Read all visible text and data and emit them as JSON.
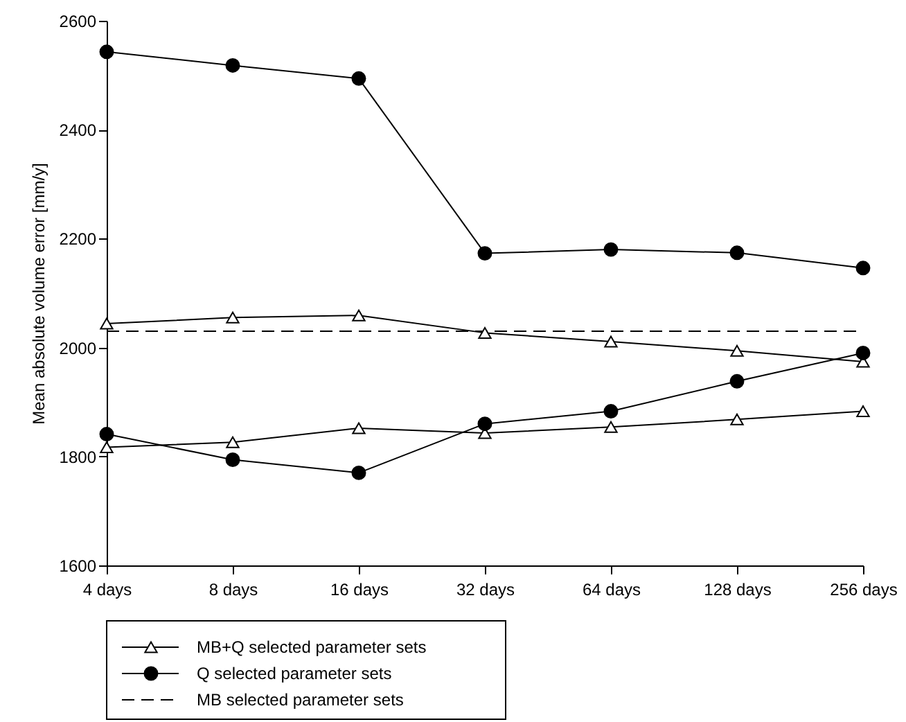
{
  "chart_data": {
    "type": "line",
    "ylabel": "Mean absolute volume error [mm/y]",
    "categories": [
      "4 days",
      "8 days",
      "16 days",
      "32 days",
      "64 days",
      "128 days",
      "256 days"
    ],
    "series": [
      {
        "name": "MB+Q selected parameter sets",
        "color": "#000000",
        "marker": "triangle",
        "values": [
          2044,
          2055,
          2059,
          2027,
          2011,
          1994,
          1974
        ]
      },
      {
        "color": "#000000",
        "marker": "triangle",
        "values": [
          1817,
          1826,
          1852,
          1843,
          1854,
          1868,
          1883
        ]
      },
      {
        "name": "Q selected parameter sets",
        "color": "#000000",
        "marker": "circle",
        "values": [
          2543,
          2518,
          2494,
          2173,
          2180,
          2174,
          2146
        ]
      },
      {
        "color": "#000000",
        "marker": "circle",
        "values": [
          1841,
          1794,
          1770,
          1860,
          1883,
          1938,
          1990
        ]
      },
      {
        "name": "MB selected parameter sets",
        "color": "#000000",
        "marker": "none",
        "line_style": "dashed",
        "values": [
          2030,
          2030,
          2030,
          2030,
          2030,
          2030,
          2030
        ]
      }
    ],
    "ylim": [
      1600,
      2600
    ],
    "yticks": [
      1600,
      1800,
      2000,
      2200,
      2400,
      2600
    ],
    "grid": false,
    "legend": "bottom"
  }
}
